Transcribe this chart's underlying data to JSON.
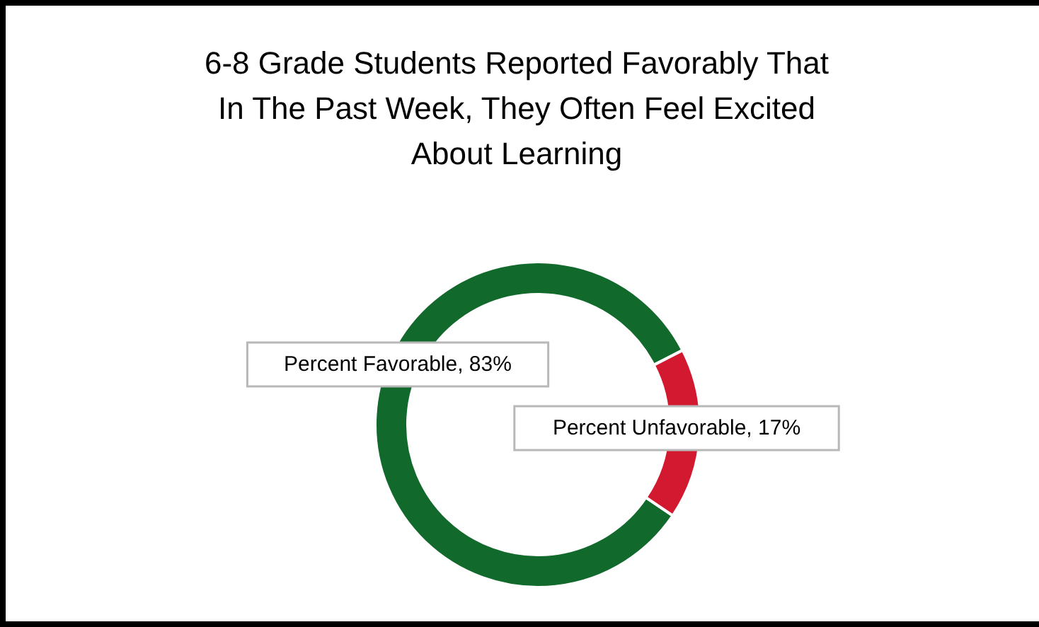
{
  "chart_data": {
    "type": "donut",
    "title": "6-8 Grade Students Reported Favorably That\nIn The Past Week, They Often Feel Excited\nAbout Learning",
    "categories": [
      "Percent Favorable",
      "Percent Unfavorable"
    ],
    "values": [
      83,
      17
    ],
    "colors": [
      "#116a2b",
      "#d2192f"
    ],
    "value_labels": [
      "83%",
      "17%"
    ]
  }
}
